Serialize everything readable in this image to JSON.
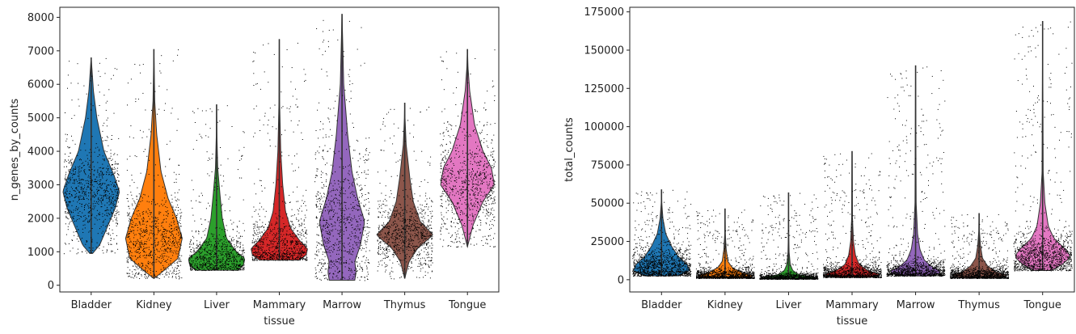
{
  "chart_data": [
    {
      "type": "violin",
      "xlabel": "tissue",
      "ylabel": "n_genes_by_counts",
      "ylim": [
        -200,
        8300
      ],
      "yticks": [
        0,
        1000,
        2000,
        3000,
        4000,
        5000,
        6000,
        7000,
        8000
      ],
      "ytick_labels": [
        "0",
        "1000",
        "2000",
        "3000",
        "4000",
        "5000",
        "6000",
        "7000",
        "8000"
      ],
      "categories": [
        "Bladder",
        "Kidney",
        "Liver",
        "Mammary",
        "Marrow",
        "Thymus",
        "Tongue"
      ],
      "colors": [
        "#1f77b4",
        "#ff7f0e",
        "#2ca02c",
        "#d62728",
        "#9467bd",
        "#8c564b",
        "#e377c2"
      ],
      "stats": [
        {
          "min": 950,
          "max": 6800,
          "median": 2800,
          "mode": 2800,
          "spread": 650,
          "density_profile": [
            [
              950,
              0.05
            ],
            [
              1200,
              0.3
            ],
            [
              1700,
              0.55
            ],
            [
              2300,
              0.85
            ],
            [
              2800,
              1.0
            ],
            [
              3300,
              0.8
            ],
            [
              4000,
              0.45
            ],
            [
              5000,
              0.2
            ],
            [
              5800,
              0.08
            ],
            [
              6800,
              0.0
            ]
          ]
        },
        {
          "min": 200,
          "max": 7050,
          "median": 1800,
          "mode": 1400,
          "spread": 700,
          "density_profile": [
            [
              200,
              0.0
            ],
            [
              400,
              0.3
            ],
            [
              800,
              0.85
            ],
            [
              1400,
              1.0
            ],
            [
              2000,
              0.8
            ],
            [
              2600,
              0.5
            ],
            [
              3400,
              0.25
            ],
            [
              4500,
              0.1
            ],
            [
              5500,
              0.03
            ],
            [
              7050,
              0.0
            ]
          ]
        },
        {
          "min": 450,
          "max": 5400,
          "median": 900,
          "mode": 800,
          "spread": 400,
          "density_profile": [
            [
              450,
              0.75
            ],
            [
              600,
              0.95
            ],
            [
              800,
              1.0
            ],
            [
              1000,
              0.7
            ],
            [
              1400,
              0.35
            ],
            [
              2000,
              0.2
            ],
            [
              2700,
              0.12
            ],
            [
              3500,
              0.04
            ],
            [
              4500,
              0.01
            ],
            [
              5400,
              0.0
            ]
          ]
        },
        {
          "min": 750,
          "max": 7350,
          "median": 1200,
          "mode": 1100,
          "spread": 500,
          "density_profile": [
            [
              750,
              0.7
            ],
            [
              900,
              0.95
            ],
            [
              1100,
              1.0
            ],
            [
              1300,
              0.75
            ],
            [
              1700,
              0.4
            ],
            [
              2200,
              0.22
            ],
            [
              3000,
              0.12
            ],
            [
              4000,
              0.05
            ],
            [
              5500,
              0.01
            ],
            [
              7350,
              0.0
            ]
          ]
        },
        {
          "min": 150,
          "max": 8100,
          "median": 1900,
          "mode": 1900,
          "spread": 1100,
          "density_profile": [
            [
              150,
              0.45
            ],
            [
              400,
              0.5
            ],
            [
              700,
              0.45
            ],
            [
              1200,
              0.65
            ],
            [
              1900,
              0.8
            ],
            [
              2600,
              0.55
            ],
            [
              3400,
              0.35
            ],
            [
              4500,
              0.2
            ],
            [
              6000,
              0.06
            ],
            [
              8100,
              0.0
            ]
          ]
        },
        {
          "min": 200,
          "max": 5450,
          "median": 1600,
          "mode": 1500,
          "spread": 500,
          "density_profile": [
            [
              200,
              0.0
            ],
            [
              700,
              0.15
            ],
            [
              1100,
              0.45
            ],
            [
              1500,
              1.0
            ],
            [
              1900,
              0.55
            ],
            [
              2500,
              0.3
            ],
            [
              3200,
              0.18
            ],
            [
              4200,
              0.05
            ],
            [
              5000,
              0.01
            ],
            [
              5450,
              0.0
            ]
          ]
        },
        {
          "min": 1150,
          "max": 7050,
          "median": 3200,
          "mode": 3000,
          "spread": 800,
          "density_profile": [
            [
              1150,
              0.0
            ],
            [
              1800,
              0.2
            ],
            [
              2500,
              0.55
            ],
            [
              3000,
              0.95
            ],
            [
              3500,
              0.85
            ],
            [
              4000,
              0.55
            ],
            [
              4800,
              0.25
            ],
            [
              5800,
              0.08
            ],
            [
              6500,
              0.02
            ],
            [
              7050,
              0.0
            ]
          ]
        }
      ]
    },
    {
      "type": "violin",
      "xlabel": "tissue",
      "ylabel": "total_counts",
      "ylim": [
        -8000,
        178000
      ],
      "yticks": [
        0,
        25000,
        50000,
        75000,
        100000,
        125000,
        150000,
        175000
      ],
      "ytick_labels": [
        "0",
        "25000",
        "50000",
        "75000",
        "100000",
        "125000",
        "150000",
        "175000"
      ],
      "categories": [
        "Bladder",
        "Kidney",
        "Liver",
        "Mammary",
        "Marrow",
        "Thymus",
        "Tongue"
      ],
      "colors": [
        "#1f77b4",
        "#ff7f0e",
        "#2ca02c",
        "#d62728",
        "#9467bd",
        "#8c564b",
        "#e377c2"
      ],
      "stats": [
        {
          "min": 2500,
          "max": 59000,
          "median": 9000,
          "mode": 8000,
          "spread": 7000,
          "density_profile": [
            [
              2500,
              0.6
            ],
            [
              6000,
              1.0
            ],
            [
              10000,
              0.9
            ],
            [
              15000,
              0.6
            ],
            [
              22000,
              0.35
            ],
            [
              30000,
              0.15
            ],
            [
              40000,
              0.05
            ],
            [
              50000,
              0.01
            ],
            [
              59000,
              0.0
            ]
          ]
        },
        {
          "min": 1000,
          "max": 46500,
          "median": 3000,
          "mode": 2500,
          "spread": 2500,
          "density_profile": [
            [
              1000,
              0.7
            ],
            [
              2500,
              1.0
            ],
            [
              5000,
              0.55
            ],
            [
              8000,
              0.25
            ],
            [
              12000,
              0.1
            ],
            [
              20000,
              0.04
            ],
            [
              30000,
              0.01
            ],
            [
              46500,
              0.0
            ]
          ]
        },
        {
          "min": 500,
          "max": 57000,
          "median": 2000,
          "mode": 1500,
          "spread": 1500,
          "density_profile": [
            [
              500,
              0.8
            ],
            [
              1500,
              1.0
            ],
            [
              3000,
              0.4
            ],
            [
              6000,
              0.15
            ],
            [
              10000,
              0.06
            ],
            [
              18000,
              0.02
            ],
            [
              30000,
              0.005
            ],
            [
              57000,
              0.0
            ]
          ]
        },
        {
          "min": 1500,
          "max": 84000,
          "median": 4500,
          "mode": 3500,
          "spread": 3500,
          "density_profile": [
            [
              1500,
              0.6
            ],
            [
              3500,
              1.0
            ],
            [
              6000,
              0.55
            ],
            [
              10000,
              0.25
            ],
            [
              16000,
              0.12
            ],
            [
              25000,
              0.05
            ],
            [
              40000,
              0.015
            ],
            [
              84000,
              0.0
            ]
          ]
        },
        {
          "min": 2500,
          "max": 140000,
          "median": 6000,
          "mode": 5000,
          "spread": 4000,
          "density_profile": [
            [
              2500,
              0.5
            ],
            [
              5000,
              1.0
            ],
            [
              8000,
              0.6
            ],
            [
              13000,
              0.3
            ],
            [
              20000,
              0.15
            ],
            [
              30000,
              0.07
            ],
            [
              50000,
              0.02
            ],
            [
              140000,
              0.0
            ]
          ]
        },
        {
          "min": 1000,
          "max": 43500,
          "median": 3500,
          "mode": 3000,
          "spread": 2500,
          "density_profile": [
            [
              1000,
              0.6
            ],
            [
              3000,
              1.0
            ],
            [
              5000,
              0.6
            ],
            [
              9000,
              0.3
            ],
            [
              14000,
              0.12
            ],
            [
              22000,
              0.05
            ],
            [
              32000,
              0.01
            ],
            [
              43500,
              0.0
            ]
          ]
        },
        {
          "min": 6000,
          "max": 169000,
          "median": 17000,
          "mode": 15000,
          "spread": 8000,
          "density_profile": [
            [
              6000,
              0.3
            ],
            [
              10000,
              0.7
            ],
            [
              15000,
              1.0
            ],
            [
              20000,
              0.8
            ],
            [
              27000,
              0.4
            ],
            [
              35000,
              0.2
            ],
            [
              50000,
              0.08
            ],
            [
              70000,
              0.02
            ],
            [
              169000,
              0.0
            ]
          ]
        }
      ]
    }
  ]
}
